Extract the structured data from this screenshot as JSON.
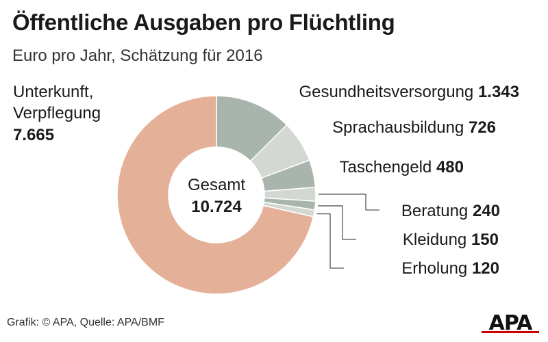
{
  "header": {
    "title": "Öffentliche Ausgaben pro Flüchtling",
    "subtitle": "Euro pro Jahr, Schätzung für 2016"
  },
  "footer": {
    "credit": "Grafik: © APA, Quelle: APA/BMF"
  },
  "logo": {
    "text": "APA",
    "color": "#cc0000"
  },
  "chart_data": {
    "type": "pie",
    "title": "Öffentliche Ausgaben pro Flüchtling",
    "subtitle": "Euro pro Jahr, Schätzung für 2016",
    "center": {
      "label": "Gesamt",
      "value": 10724,
      "value_text": "10.724"
    },
    "slices": [
      {
        "name": "Gesundheitsversorgung",
        "value": 1343,
        "value_text": "1.343",
        "color": "#a9b5ac"
      },
      {
        "name": "Sprachausbildung",
        "value": 726,
        "value_text": "726",
        "color": "#d4d8d2"
      },
      {
        "name": "Taschengeld",
        "value": 480,
        "value_text": "480",
        "color": "#a9b5ac"
      },
      {
        "name": "Beratung",
        "value": 240,
        "value_text": "240",
        "color": "#d4d8d2"
      },
      {
        "name": "Kleidung",
        "value": 150,
        "value_text": "150",
        "color": "#a9b5ac"
      },
      {
        "name": "Erholung",
        "value": 120,
        "value_text": "120",
        "color": "#d4d8d2"
      },
      {
        "name": "Unterkunft, Verpflegung",
        "value": 7665,
        "value_text": "7.665",
        "color": "#e4b198"
      }
    ]
  }
}
